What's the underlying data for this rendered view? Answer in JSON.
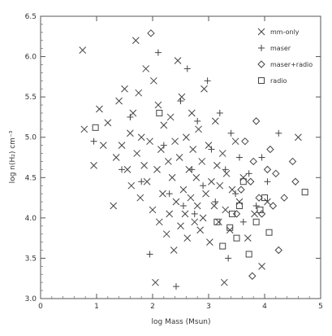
{
  "chart_data": {
    "type": "scatter",
    "xlabel": "log Mass (Msun)",
    "ylabel": "log n(H₂) cm⁻³",
    "xlim": [
      0,
      5
    ],
    "ylim": [
      3.0,
      6.5
    ],
    "xticks": [
      "0",
      "1",
      "2",
      "3",
      "4",
      "5"
    ],
    "yticks": [
      "3.0",
      "3.5",
      "4.0",
      "4.5",
      "5.0",
      "5.5",
      "6.0",
      "6.5"
    ],
    "grid": false,
    "legend_position": "top-right",
    "series": [
      {
        "name": "mm-only",
        "marker": "x",
        "points": [
          [
            0.75,
            6.08
          ],
          [
            0.78,
            5.1
          ],
          [
            0.95,
            4.65
          ],
          [
            1.05,
            5.35
          ],
          [
            1.12,
            4.9
          ],
          [
            1.2,
            5.18
          ],
          [
            1.3,
            4.15
          ],
          [
            1.35,
            4.75
          ],
          [
            1.4,
            5.45
          ],
          [
            1.45,
            4.9
          ],
          [
            1.5,
            5.6
          ],
          [
            1.55,
            4.6
          ],
          [
            1.6,
            5.05
          ],
          [
            1.62,
            4.4
          ],
          [
            1.65,
            5.3
          ],
          [
            1.7,
            6.2
          ],
          [
            1.72,
            4.8
          ],
          [
            1.75,
            5.55
          ],
          [
            1.78,
            4.25
          ],
          [
            1.8,
            5.0
          ],
          [
            1.85,
            4.65
          ],
          [
            1.88,
            5.85
          ],
          [
            1.9,
            4.45
          ],
          [
            1.95,
            4.95
          ],
          [
            2.0,
            4.1
          ],
          [
            2.02,
            5.7
          ],
          [
            2.05,
            3.2
          ],
          [
            2.08,
            4.6
          ],
          [
            2.1,
            5.4
          ],
          [
            2.12,
            3.95
          ],
          [
            2.15,
            4.85
          ],
          [
            2.18,
            4.3
          ],
          [
            2.2,
            5.15
          ],
          [
            2.25,
            3.8
          ],
          [
            2.28,
            4.7
          ],
          [
            2.3,
            4.05
          ],
          [
            2.32,
            5.25
          ],
          [
            2.35,
            4.5
          ],
          [
            2.38,
            3.6
          ],
          [
            2.4,
            4.95
          ],
          [
            2.42,
            4.2
          ],
          [
            2.45,
            5.95
          ],
          [
            2.48,
            4.75
          ],
          [
            2.5,
            3.9
          ],
          [
            2.52,
            5.5
          ],
          [
            2.55,
            4.35
          ],
          [
            2.58,
            4.05
          ],
          [
            2.6,
            5.0
          ],
          [
            2.62,
            3.75
          ],
          [
            2.65,
            4.6
          ],
          [
            2.68,
            4.25
          ],
          [
            2.7,
            5.3
          ],
          [
            2.72,
            4.85
          ],
          [
            2.75,
            3.95
          ],
          [
            2.78,
            4.5
          ],
          [
            2.8,
            4.15
          ],
          [
            2.82,
            5.1
          ],
          [
            2.85,
            3.85
          ],
          [
            2.88,
            4.7
          ],
          [
            2.9,
            4.0
          ],
          [
            2.92,
            5.6
          ],
          [
            2.95,
            4.3
          ],
          [
            3.0,
            4.9
          ],
          [
            3.02,
            3.7
          ],
          [
            3.05,
            4.45
          ],
          [
            3.1,
            4.15
          ],
          [
            3.12,
            5.2
          ],
          [
            3.15,
            4.65
          ],
          [
            3.18,
            3.95
          ],
          [
            3.2,
            4.4
          ],
          [
            3.25,
            4.8
          ],
          [
            3.28,
            3.2
          ],
          [
            3.3,
            4.1
          ],
          [
            3.32,
            4.55
          ],
          [
            3.38,
            3.85
          ],
          [
            3.42,
            4.35
          ],
          [
            3.48,
            4.95
          ],
          [
            3.55,
            4.2
          ],
          [
            3.62,
            4.5
          ],
          [
            3.7,
            3.75
          ],
          [
            3.82,
            4.05
          ],
          [
            3.95,
            3.4
          ],
          [
            4.05,
            4.2
          ],
          [
            4.6,
            5.0
          ]
        ]
      },
      {
        "name": "maser",
        "marker": "+",
        "points": [
          [
            0.95,
            4.95
          ],
          [
            1.45,
            4.6
          ],
          [
            1.6,
            5.25
          ],
          [
            1.8,
            4.45
          ],
          [
            2.1,
            6.05
          ],
          [
            2.2,
            4.9
          ],
          [
            2.3,
            4.3
          ],
          [
            2.42,
            3.15
          ],
          [
            2.5,
            5.45
          ],
          [
            2.55,
            4.15
          ],
          [
            2.7,
            4.6
          ],
          [
            2.75,
            4.05
          ],
          [
            2.8,
            5.2
          ],
          [
            2.9,
            4.4
          ],
          [
            2.98,
            5.7
          ],
          [
            3.05,
            4.85
          ],
          [
            3.12,
            4.2
          ],
          [
            3.2,
            5.3
          ],
          [
            3.3,
            4.6
          ],
          [
            3.35,
            3.5
          ],
          [
            3.4,
            5.05
          ],
          [
            3.48,
            4.3
          ],
          [
            3.55,
            4.75
          ],
          [
            3.62,
            3.95
          ],
          [
            3.72,
            4.55
          ],
          [
            3.85,
            4.15
          ],
          [
            3.95,
            4.75
          ],
          [
            4.05,
            4.45
          ],
          [
            4.25,
            5.05
          ],
          [
            2.62,
            5.85
          ],
          [
            1.95,
            3.55
          ]
        ]
      },
      {
        "name": "maser+radio",
        "marker": "diamond",
        "points": [
          [
            1.97,
            6.29
          ],
          [
            3.5,
            4.05
          ],
          [
            3.65,
            4.95
          ],
          [
            3.75,
            4.45
          ],
          [
            3.8,
            4.7
          ],
          [
            3.85,
            5.2
          ],
          [
            3.9,
            4.25
          ],
          [
            3.95,
            4.05
          ],
          [
            4.05,
            4.6
          ],
          [
            4.1,
            4.85
          ],
          [
            4.15,
            4.15
          ],
          [
            4.2,
            4.55
          ],
          [
            4.25,
            3.6
          ],
          [
            4.35,
            4.25
          ],
          [
            4.5,
            4.7
          ],
          [
            4.55,
            4.45
          ],
          [
            3.78,
            3.28
          ],
          [
            3.58,
            4.35
          ]
        ]
      },
      {
        "name": "radio",
        "marker": "square",
        "points": [
          [
            0.98,
            5.12
          ],
          [
            2.12,
            5.3
          ],
          [
            3.15,
            3.95
          ],
          [
            3.25,
            3.65
          ],
          [
            3.38,
            3.88
          ],
          [
            3.42,
            4.05
          ],
          [
            3.5,
            3.75
          ],
          [
            3.55,
            4.15
          ],
          [
            3.62,
            4.45
          ],
          [
            3.72,
            3.55
          ],
          [
            3.92,
            4.1
          ],
          [
            4.0,
            4.25
          ],
          [
            4.08,
            3.82
          ],
          [
            4.72,
            4.32
          ],
          [
            3.85,
            3.95
          ]
        ]
      }
    ]
  }
}
